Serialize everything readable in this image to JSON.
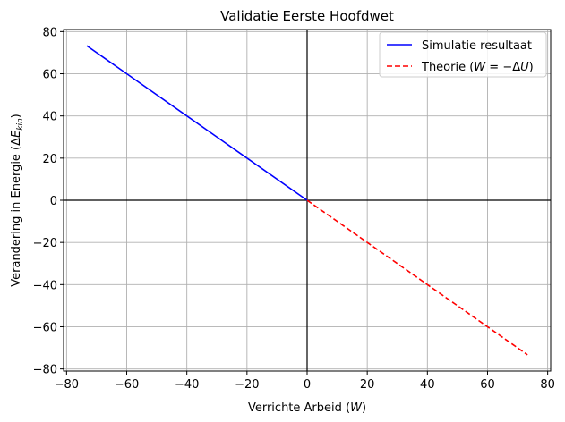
{
  "chart_data": {
    "type": "line",
    "title": "Validatie Eerste Hoofdwet",
    "xlabel": "Verrichte Arbeid (W)",
    "ylabel": "Verandering in Energie (ΔE_kin)",
    "xlim": [
      -81,
      81
    ],
    "ylim": [
      -81,
      81
    ],
    "xticks": [
      -80,
      -60,
      -40,
      -20,
      0,
      20,
      40,
      60,
      80
    ],
    "yticks": [
      -80,
      -60,
      -40,
      -20,
      0,
      20,
      40,
      60,
      80
    ],
    "xtick_labels": [
      "−80",
      "−60",
      "−40",
      "−20",
      "0",
      "20",
      "40",
      "60",
      "80"
    ],
    "ytick_labels": [
      "−80",
      "−60",
      "−40",
      "−20",
      "0",
      "20",
      "40",
      "60",
      "80"
    ],
    "grid": true,
    "reference_lines": {
      "x": 0,
      "y": 0
    },
    "legend_position": "top-right",
    "series": [
      {
        "name": "Simulatie resultaat",
        "color": "#0000ff",
        "style": "solid",
        "x": [
          -73.3,
          0
        ],
        "y": [
          73.3,
          0
        ]
      },
      {
        "name": "Theorie (W = −ΔU)",
        "color": "#ff0000",
        "style": "dashed",
        "x": [
          0,
          73.3
        ],
        "y": [
          0,
          -73.3
        ]
      }
    ]
  }
}
